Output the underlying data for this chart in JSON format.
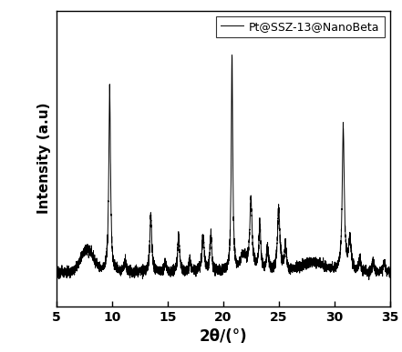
{
  "xlabel": "2θ/(°)",
  "ylabel": "Intensity (a.u)",
  "legend_label": "Pt@SSZ-13@NanoBeta",
  "xmin": 5,
  "xmax": 35,
  "xticks": [
    5,
    10,
    15,
    20,
    25,
    30,
    35
  ],
  "line_color": "#000000",
  "background_color": "#ffffff",
  "line_width": 0.7
}
